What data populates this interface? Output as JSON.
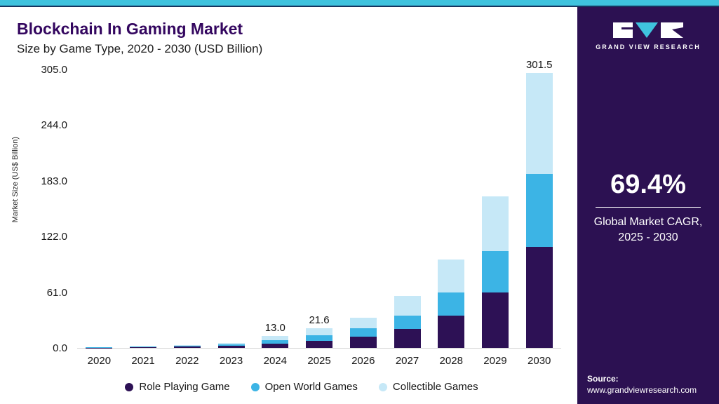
{
  "header": {
    "title": "Blockchain In Gaming Market",
    "subtitle": "Size by Game Type, 2020 - 2030 (USD Billion)"
  },
  "chart_data": {
    "type": "bar",
    "stacked": true,
    "title": "Blockchain In Gaming Market",
    "subtitle": "Size by Game Type, 2020 - 2030 (USD Billion)",
    "xlabel": "",
    "ylabel": "Market Size (US$ Billion)",
    "ylim": [
      0,
      305
    ],
    "ytick_labels": [
      "0.0",
      "61.0",
      "122.0",
      "183.0",
      "244.0",
      "305.0"
    ],
    "grid": false,
    "legend_position": "bottom",
    "categories": [
      "2020",
      "2021",
      "2022",
      "2023",
      "2024",
      "2025",
      "2026",
      "2027",
      "2028",
      "2029",
      "2030"
    ],
    "series": [
      {
        "name": "Role Playing Game",
        "color": "#2d1155",
        "values": [
          0.3,
          0.7,
          1.2,
          2.0,
          4.7,
          7.9,
          12.3,
          20.5,
          35.5,
          60.5,
          111.0
        ]
      },
      {
        "name": "Open World Games",
        "color": "#3cb4e5",
        "values": [
          0.2,
          0.5,
          0.9,
          1.5,
          3.7,
          6.2,
          9.2,
          15.0,
          25.5,
          45.5,
          79.5
        ]
      },
      {
        "name": "Collectible Games",
        "color": "#c6e8f7",
        "values": [
          0.2,
          0.5,
          1.0,
          1.7,
          4.6,
          7.5,
          11.5,
          21.0,
          36.0,
          60.0,
          111.0
        ]
      }
    ],
    "total_labels": [
      "",
      "",
      "",
      "",
      "13.0",
      "21.6",
      "",
      "",
      "",
      "",
      "301.5"
    ]
  },
  "sidebar": {
    "logo_text": "GRAND VIEW RESEARCH",
    "cagr_value": "69.4%",
    "cagr_line1": "Global Market CAGR,",
    "cagr_line2": "2025 - 2030",
    "source_label": "Source:",
    "source_url": "www.grandviewresearch.com"
  },
  "colors": {
    "accent_top": "#3fc3de",
    "accent_edge": "#16355f",
    "sidebar_bg": "#2c1152",
    "title": "#33065f"
  }
}
